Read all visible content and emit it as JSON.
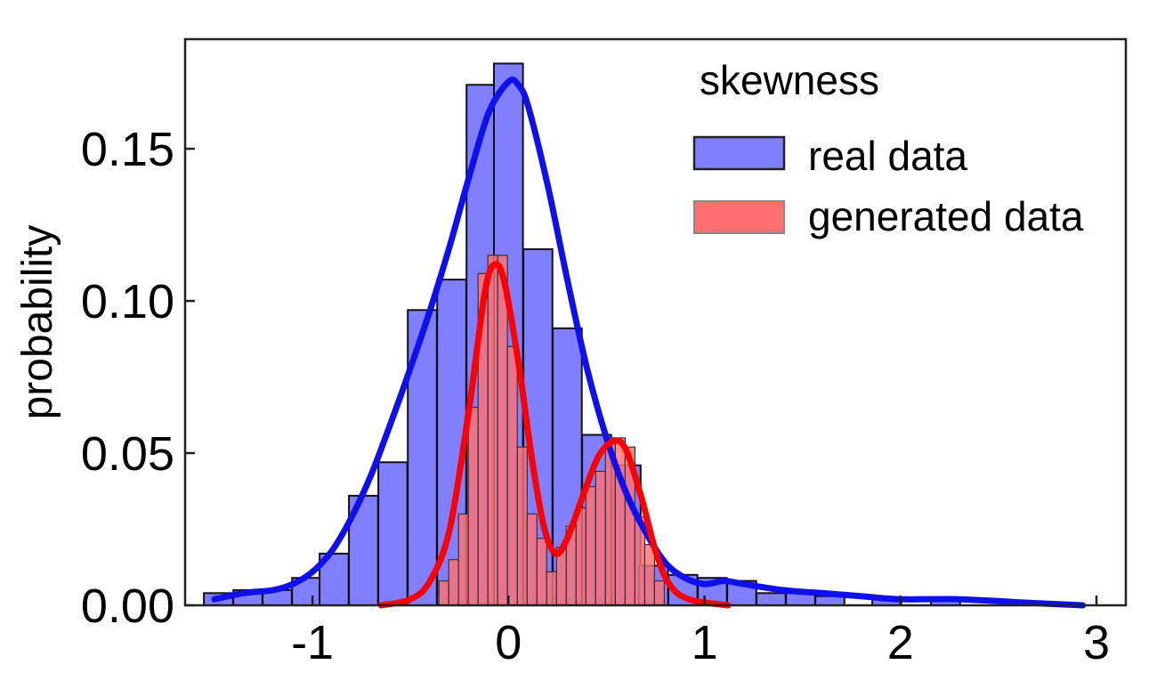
{
  "chart_data": {
    "type": "bar",
    "title": "",
    "xlabel": "",
    "ylabel": "probability",
    "xlim": [
      -1.65,
      3.15
    ],
    "ylim": [
      0,
      0.186
    ],
    "x_ticks": [
      {
        "value": -1,
        "label": "-1"
      },
      {
        "value": 0,
        "label": "0"
      },
      {
        "value": 1,
        "label": "1"
      },
      {
        "value": 2,
        "label": "2"
      },
      {
        "value": 3,
        "label": "3"
      }
    ],
    "y_ticks": [
      {
        "value": 0.0,
        "label": "0.00"
      },
      {
        "value": 0.05,
        "label": "0.05"
      },
      {
        "value": 0.1,
        "label": "0.10"
      },
      {
        "value": 0.15,
        "label": "0.15"
      }
    ],
    "legend": {
      "title": "skewness",
      "position": "top-right"
    },
    "series": [
      {
        "name": "real data",
        "color": "#7f7fff",
        "line_color": "#1010ee",
        "bin_width": 0.148,
        "bins": [
          {
            "x": -1.48,
            "y": 0.004
          },
          {
            "x": -1.33,
            "y": 0.005
          },
          {
            "x": -1.18,
            "y": 0.005
          },
          {
            "x": -1.03,
            "y": 0.009
          },
          {
            "x": -0.89,
            "y": 0.017
          },
          {
            "x": -0.74,
            "y": 0.036
          },
          {
            "x": -0.59,
            "y": 0.047
          },
          {
            "x": -0.44,
            "y": 0.097
          },
          {
            "x": -0.29,
            "y": 0.107
          },
          {
            "x": -0.14,
            "y": 0.171
          },
          {
            "x": 0.0,
            "y": 0.178
          },
          {
            "x": 0.15,
            "y": 0.117
          },
          {
            "x": 0.3,
            "y": 0.091
          },
          {
            "x": 0.45,
            "y": 0.056
          },
          {
            "x": 0.6,
            "y": 0.046
          },
          {
            "x": 0.74,
            "y": 0.013
          },
          {
            "x": 0.89,
            "y": 0.01
          },
          {
            "x": 1.04,
            "y": 0.009
          },
          {
            "x": 1.19,
            "y": 0.008
          },
          {
            "x": 1.34,
            "y": 0.004
          },
          {
            "x": 1.49,
            "y": 0.004
          },
          {
            "x": 1.64,
            "y": 0.003
          },
          {
            "x": 1.93,
            "y": 0.002
          },
          {
            "x": 2.23,
            "y": 0.002
          }
        ],
        "kde": [
          [
            -1.5,
            0.002
          ],
          [
            -1.35,
            0.004
          ],
          [
            -1.2,
            0.005
          ],
          [
            -1.1,
            0.007
          ],
          [
            -1.0,
            0.011
          ],
          [
            -0.9,
            0.018
          ],
          [
            -0.8,
            0.029
          ],
          [
            -0.7,
            0.043
          ],
          [
            -0.6,
            0.06
          ],
          [
            -0.5,
            0.078
          ],
          [
            -0.4,
            0.097
          ],
          [
            -0.3,
            0.118
          ],
          [
            -0.2,
            0.141
          ],
          [
            -0.1,
            0.162
          ],
          [
            0.0,
            0.172
          ],
          [
            0.05,
            0.171
          ],
          [
            0.1,
            0.164
          ],
          [
            0.2,
            0.138
          ],
          [
            0.3,
            0.107
          ],
          [
            0.4,
            0.078
          ],
          [
            0.5,
            0.055
          ],
          [
            0.6,
            0.037
          ],
          [
            0.7,
            0.024
          ],
          [
            0.8,
            0.014
          ],
          [
            0.9,
            0.009
          ],
          [
            1.0,
            0.007
          ],
          [
            1.1,
            0.008
          ],
          [
            1.2,
            0.007
          ],
          [
            1.4,
            0.005
          ],
          [
            1.6,
            0.004
          ],
          [
            1.8,
            0.003
          ],
          [
            2.0,
            0.002
          ],
          [
            2.3,
            0.002
          ],
          [
            2.6,
            0.001
          ],
          [
            2.93,
            0.0
          ]
        ]
      },
      {
        "name": "generated data",
        "color": "#ff7070",
        "line_color": "#ff0000",
        "bin_width": 0.05,
        "bins": [
          {
            "x": -0.33,
            "y": 0.008
          },
          {
            "x": -0.28,
            "y": 0.015
          },
          {
            "x": -0.23,
            "y": 0.03
          },
          {
            "x": -0.18,
            "y": 0.065
          },
          {
            "x": -0.13,
            "y": 0.109
          },
          {
            "x": -0.08,
            "y": 0.115
          },
          {
            "x": -0.03,
            "y": 0.115
          },
          {
            "x": 0.02,
            "y": 0.085
          },
          {
            "x": 0.07,
            "y": 0.052
          },
          {
            "x": 0.12,
            "y": 0.03
          },
          {
            "x": 0.17,
            "y": 0.022
          },
          {
            "x": 0.22,
            "y": 0.011
          },
          {
            "x": 0.27,
            "y": 0.019
          },
          {
            "x": 0.32,
            "y": 0.026
          },
          {
            "x": 0.37,
            "y": 0.032
          },
          {
            "x": 0.42,
            "y": 0.039
          },
          {
            "x": 0.47,
            "y": 0.044
          },
          {
            "x": 0.52,
            "y": 0.055
          },
          {
            "x": 0.57,
            "y": 0.055
          },
          {
            "x": 0.62,
            "y": 0.052
          },
          {
            "x": 0.67,
            "y": 0.029
          },
          {
            "x": 0.72,
            "y": 0.02
          },
          {
            "x": 0.77,
            "y": 0.008
          }
        ],
        "kde": [
          [
            -0.65,
            0.0
          ],
          [
            -0.5,
            0.002
          ],
          [
            -0.4,
            0.008
          ],
          [
            -0.3,
            0.025
          ],
          [
            -0.2,
            0.065
          ],
          [
            -0.12,
            0.103
          ],
          [
            -0.07,
            0.112
          ],
          [
            -0.02,
            0.106
          ],
          [
            0.05,
            0.08
          ],
          [
            0.12,
            0.048
          ],
          [
            0.18,
            0.026
          ],
          [
            0.24,
            0.017
          ],
          [
            0.3,
            0.022
          ],
          [
            0.38,
            0.036
          ],
          [
            0.46,
            0.049
          ],
          [
            0.54,
            0.054
          ],
          [
            0.6,
            0.051
          ],
          [
            0.68,
            0.035
          ],
          [
            0.75,
            0.018
          ],
          [
            0.82,
            0.007
          ],
          [
            0.92,
            0.002
          ],
          [
            1.12,
            0.0
          ]
        ]
      }
    ]
  }
}
